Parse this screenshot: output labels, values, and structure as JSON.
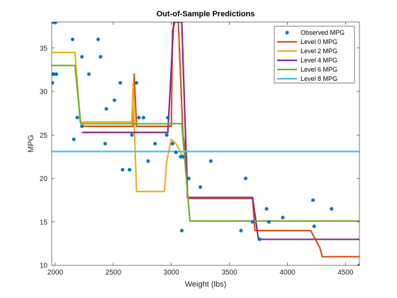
{
  "chart_data": {
    "type": "line",
    "title": "Out-of-Sample Predictions",
    "xlabel": "Weight (lbs)",
    "ylabel": "MPG",
    "xlim": [
      1970,
      4620
    ],
    "ylim": [
      10,
      38
    ],
    "xticks": [
      2000,
      2500,
      3000,
      3500,
      4000,
      4500
    ],
    "yticks": [
      10,
      15,
      20,
      25,
      30,
      35
    ],
    "grid": false,
    "legend_position": "top-right",
    "scatter": {
      "name": "Observed MPG",
      "color": "#0072BD",
      "points": [
        [
          1975,
          38
        ],
        [
          1985,
          38
        ],
        [
          1995,
          38
        ],
        [
          2005,
          38
        ],
        [
          1980,
          32
        ],
        [
          1990,
          32
        ],
        [
          2010,
          32
        ],
        [
          1975,
          31
        ],
        [
          2150,
          36
        ],
        [
          2370,
          36
        ],
        [
          2230,
          34
        ],
        [
          2390,
          34
        ],
        [
          2290,
          32
        ],
        [
          2190,
          27
        ],
        [
          2160,
          24.5
        ],
        [
          2230,
          26
        ],
        [
          2440,
          28
        ],
        [
          2510,
          29
        ],
        [
          2560,
          31
        ],
        [
          2430,
          24
        ],
        [
          2580,
          21
        ],
        [
          2640,
          21
        ],
        [
          2660,
          25
        ],
        [
          2700,
          31
        ],
        [
          2720,
          27
        ],
        [
          2760,
          27
        ],
        [
          2800,
          22
        ],
        [
          2860,
          24
        ],
        [
          2960,
          25
        ],
        [
          2970,
          27
        ],
        [
          3010,
          24
        ],
        [
          3040,
          23
        ],
        [
          3080,
          22.5
        ],
        [
          3100,
          22.5
        ],
        [
          3150,
          20
        ],
        [
          3090,
          14
        ],
        [
          3250,
          19
        ],
        [
          3340,
          22
        ],
        [
          3600,
          14
        ],
        [
          3640,
          20
        ],
        [
          3700,
          15
        ],
        [
          3760,
          13
        ],
        [
          3820,
          16.5
        ],
        [
          3840,
          15
        ],
        [
          3960,
          15.5
        ],
        [
          4230,
          14.5
        ],
        [
          4220,
          17.5
        ],
        [
          4380,
          16.5
        ],
        [
          4620,
          10
        ]
      ]
    },
    "series": [
      {
        "name": "Level 0 MPG",
        "color": "#D95319",
        "x": [
          2230,
          2670,
          2680,
          2690,
          2700,
          2725,
          3000,
          3010,
          3030,
          3060,
          3100,
          3130,
          3140,
          3700,
          3720,
          4200,
          4280,
          4300,
          4620
        ],
        "y": [
          26,
          26,
          32,
          29,
          26,
          26,
          26,
          37,
          38,
          38,
          25,
          22.5,
          17.7,
          17.7,
          14,
          14,
          12,
          11,
          11
        ]
      },
      {
        "name": "Level 2 MPG",
        "color": "#EDB120",
        "x": [
          1970,
          2170,
          2215,
          2660,
          2670,
          2680,
          2700,
          2720,
          2940,
          2960,
          3000,
          3040,
          3100,
          3140
        ],
        "y": [
          34.5,
          34.5,
          26.5,
          26.5,
          31,
          26.5,
          18.5,
          18.5,
          18.5,
          22,
          24.5,
          24,
          22.5,
          22.5
        ]
      },
      {
        "name": "Level 4 MPG",
        "color": "#7E2F8E",
        "x": [
          2230,
          2690,
          2700,
          2970,
          3020,
          3090,
          3140,
          3700,
          3750,
          4620
        ],
        "y": [
          25.3,
          25.3,
          25.3,
          25.3,
          38,
          38,
          17.8,
          17.8,
          13,
          13
        ]
      },
      {
        "name": "Level 6 MPG",
        "color": "#77AC30",
        "x": [
          1970,
          2170,
          2220,
          3090,
          3160,
          4620
        ],
        "y": [
          33,
          33,
          26.3,
          26.3,
          15.1,
          15.1
        ]
      },
      {
        "name": "Level 8 MPG",
        "color": "#4DBEEE",
        "x": [
          1970,
          4620
        ],
        "y": [
          23.1,
          23.1
        ]
      }
    ]
  }
}
